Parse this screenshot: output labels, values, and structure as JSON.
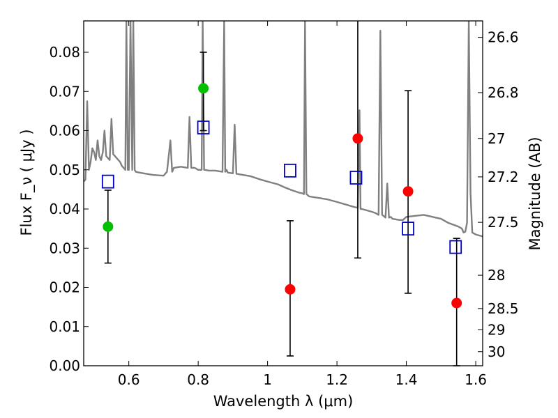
{
  "chart_data": {
    "type": "scatter",
    "xlabel": "Wavelength  λ (μm)",
    "ylabel": "Flux  F_ν  ( μJy )",
    "ylabel_right": "Magnitude (AB)",
    "xlim": [
      0.47,
      1.62
    ],
    "ylim": [
      0.0,
      0.088
    ],
    "x_ticks": [
      0.6,
      0.8,
      1.0,
      1.2,
      1.4,
      1.6
    ],
    "x_tick_labels": [
      "0.6",
      "0.8",
      "1",
      "1.2",
      "1.4",
      "1.6"
    ],
    "y_ticks": [
      0.0,
      0.01,
      0.02,
      0.03,
      0.04,
      0.05,
      0.06,
      0.07,
      0.08
    ],
    "y_tick_labels": [
      "0.00",
      "0.01",
      "0.02",
      "0.03",
      "0.04",
      "0.05",
      "0.06",
      "0.07",
      "0.08"
    ],
    "right_ticks": [
      {
        "mag": "26.6",
        "flux": 0.0838
      },
      {
        "mag": "26.8",
        "flux": 0.0697
      },
      {
        "mag": "27",
        "flux": 0.058
      },
      {
        "mag": "27.2",
        "flux": 0.0482
      },
      {
        "mag": "27.5",
        "flux": 0.0366
      },
      {
        "mag": "28",
        "flux": 0.0231
      },
      {
        "mag": "28.5",
        "flux": 0.0146
      },
      {
        "mag": "29",
        "flux": 0.0092
      },
      {
        "mag": "30",
        "flux": 0.0036
      }
    ],
    "template_spectrum": {
      "color": "#808080",
      "x": [
        0.47,
        0.475,
        0.48,
        0.485,
        0.49,
        0.495,
        0.5,
        0.505,
        0.51,
        0.515,
        0.52,
        0.525,
        0.53,
        0.535,
        0.54,
        0.545,
        0.55,
        0.555,
        0.56,
        0.565,
        0.57,
        0.575,
        0.58,
        0.585,
        0.59,
        0.593,
        0.597,
        0.6,
        0.605,
        0.61,
        0.613,
        0.617,
        0.62,
        0.63,
        0.65,
        0.67,
        0.7,
        0.71,
        0.72,
        0.725,
        0.73,
        0.75,
        0.77,
        0.775,
        0.78,
        0.79,
        0.8,
        0.81,
        0.813,
        0.817,
        0.82,
        0.83,
        0.85,
        0.87,
        0.875,
        0.878,
        0.882,
        0.885,
        0.9,
        0.905,
        0.91,
        0.95,
        0.98,
        1.0,
        1.03,
        1.05,
        1.07,
        1.09,
        1.1,
        1.105,
        1.108,
        1.112,
        1.115,
        1.12,
        1.15,
        1.17,
        1.2,
        1.25,
        1.26,
        1.265,
        1.268,
        1.272,
        1.28,
        1.3,
        1.31,
        1.32,
        1.325,
        1.33,
        1.335,
        1.34,
        1.345,
        1.35,
        1.355,
        1.36,
        1.38,
        1.39,
        1.4,
        1.45,
        1.5,
        1.52,
        1.55,
        1.56,
        1.565,
        1.57,
        1.575,
        1.58,
        1.585,
        1.59,
        1.6,
        1.62
      ],
      "y": [
        0.047,
        0.0475,
        0.0675,
        0.05,
        0.052,
        0.0555,
        0.0545,
        0.0525,
        0.0575,
        0.0535,
        0.0525,
        0.0545,
        0.06,
        0.0535,
        0.053,
        0.0525,
        0.063,
        0.054,
        0.0535,
        0.053,
        0.0525,
        0.052,
        0.051,
        0.0505,
        0.05,
        0.088,
        0.05,
        0.05,
        0.088,
        0.05,
        0.088,
        0.05,
        0.0495,
        0.0493,
        0.049,
        0.0487,
        0.0485,
        0.0495,
        0.0575,
        0.0495,
        0.0505,
        0.0508,
        0.0505,
        0.0635,
        0.0505,
        0.0505,
        0.05,
        0.05,
        0.088,
        0.05,
        0.05,
        0.0498,
        0.0498,
        0.0495,
        0.088,
        0.0495,
        0.05,
        0.0493,
        0.0491,
        0.0615,
        0.049,
        0.0484,
        0.0475,
        0.047,
        0.0463,
        0.0455,
        0.0448,
        0.0442,
        0.044,
        0.0438,
        0.088,
        0.0438,
        0.0436,
        0.0432,
        0.0428,
        0.0425,
        0.0418,
        0.0405,
        0.0403,
        0.0652,
        0.04,
        0.04,
        0.0398,
        0.0393,
        0.039,
        0.0385,
        0.0855,
        0.0385,
        0.0382,
        0.0378,
        0.0465,
        0.0378,
        0.038,
        0.0375,
        0.0372,
        0.0372,
        0.038,
        0.0385,
        0.0375,
        0.0365,
        0.0355,
        0.035,
        0.034,
        0.0342,
        0.0365,
        0.088,
        0.044,
        0.034,
        0.0335,
        0.033
      ]
    },
    "series": [
      {
        "color": "#ff0000",
        "marker": "circle",
        "points": [
          {
            "x": 1.065,
            "y": 0.0195,
            "err_low": 0.0025,
            "err_high": 0.037
          },
          {
            "x": 1.26,
            "y": 0.058,
            "err_low": 0.0275,
            "err_high": 0.0885
          },
          {
            "x": 1.405,
            "y": 0.0445,
            "err_low": 0.0185,
            "err_high": 0.0702
          },
          {
            "x": 1.545,
            "y": 0.016,
            "err_low": 0.0,
            "err_high": 0.0325
          }
        ]
      },
      {
        "color": "#00c000",
        "marker": "circle",
        "points": [
          {
            "x": 0.54,
            "y": 0.0355,
            "err_low": 0.0262,
            "err_high": 0.0448
          },
          {
            "x": 0.815,
            "y": 0.0708,
            "err_low": 0.06,
            "err_high": 0.08
          }
        ]
      },
      {
        "color": "#0000cc",
        "marker": "open-square",
        "points": [
          {
            "x": 0.54,
            "y": 0.047
          },
          {
            "x": 0.815,
            "y": 0.0608
          },
          {
            "x": 1.065,
            "y": 0.0498
          },
          {
            "x": 1.255,
            "y": 0.048
          },
          {
            "x": 1.405,
            "y": 0.035
          },
          {
            "x": 1.542,
            "y": 0.0303
          }
        ]
      }
    ],
    "grid": false,
    "legend": "none"
  }
}
